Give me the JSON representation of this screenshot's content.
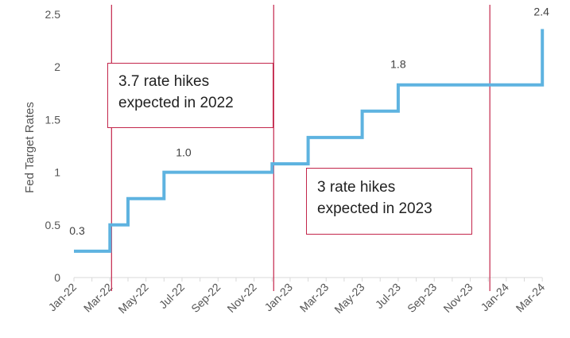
{
  "chart_data": {
    "type": "line",
    "step": true,
    "ylabel": "Fed Target Rates",
    "xlabel": "",
    "title": "",
    "ylim": [
      0,
      2.5
    ],
    "yticks": [
      "0",
      "0.5",
      "1",
      "1.5",
      "2",
      "2.5"
    ],
    "x_ticks": [
      "Jan-22",
      "Mar-22",
      "May-22",
      "Jul-22",
      "Sep-22",
      "Nov-22",
      "Jan-23",
      "Mar-23",
      "May-23",
      "Jul-23",
      "Sep-23",
      "Nov-23",
      "Jan-24",
      "Mar-24"
    ],
    "series": [
      {
        "color": "#5eb3e0",
        "points": [
          {
            "x": "Jan-22",
            "y": 0.25
          },
          {
            "x": "Mar-22",
            "y": 0.25
          },
          {
            "x": "Mar-22",
            "y": 0.5
          },
          {
            "x": "Apr-22",
            "y": 0.5
          },
          {
            "x": "Apr-22",
            "y": 0.75
          },
          {
            "x": "Jun-22",
            "y": 0.75
          },
          {
            "x": "Jun-22",
            "y": 1.0
          },
          {
            "x": "Dec-22",
            "y": 1.0
          },
          {
            "x": "Dec-22",
            "y": 1.08
          },
          {
            "x": "Feb-23",
            "y": 1.08
          },
          {
            "x": "Feb-23",
            "y": 1.33
          },
          {
            "x": "May-23",
            "y": 1.33
          },
          {
            "x": "May-23",
            "y": 1.58
          },
          {
            "x": "Jul-23",
            "y": 1.58
          },
          {
            "x": "Jul-23",
            "y": 1.83
          },
          {
            "x": "Mar-24",
            "y": 1.83
          },
          {
            "x": "Mar-24",
            "y": 2.36
          }
        ]
      }
    ],
    "data_labels": [
      {
        "text": "0.3",
        "x": "Jan-22",
        "y": 0.25
      },
      {
        "text": "1.0",
        "x": "Jul-22",
        "y": 1.0
      },
      {
        "text": "1.8",
        "x": "Jul-23",
        "y": 1.83
      },
      {
        "text": "2.4",
        "x": "Mar-24",
        "y": 2.36
      }
    ],
    "vlines": [
      {
        "x": "Mar-22",
        "color": "#c3264b"
      },
      {
        "x": "Dec-22",
        "color": "#c3264b"
      },
      {
        "x": "Dec-23",
        "color": "#c3264b"
      }
    ],
    "annotations": [
      {
        "lines": [
          "3.7 rate hikes",
          "expected in 2022"
        ],
        "color": "#c3264b"
      },
      {
        "lines": [
          "3 rate hikes",
          "expected in 2023"
        ],
        "color": "#c3264b"
      }
    ],
    "grid": false,
    "legend": "none"
  }
}
